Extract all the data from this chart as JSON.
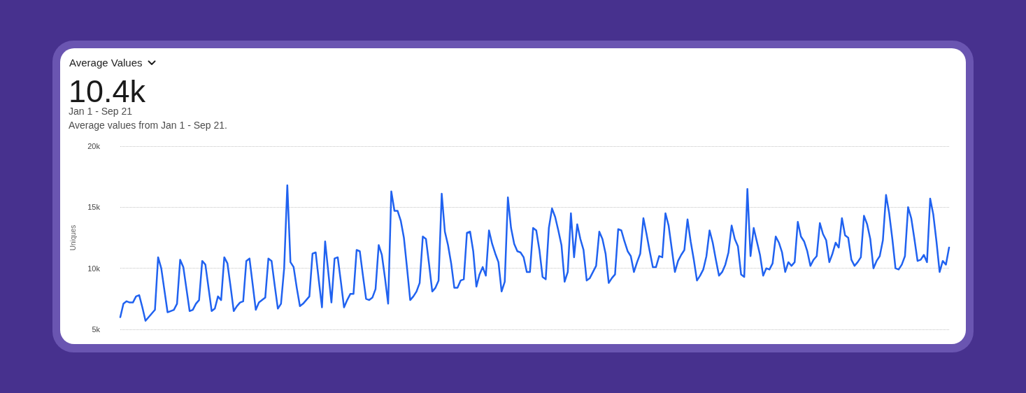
{
  "chart_data": {
    "type": "line",
    "title": "Average Values",
    "annotations": [
      "10.4k",
      "Jan 1 - Sep 21",
      "Average values from Jan 1 - Sep 21."
    ],
    "ylabel": "Uniques",
    "categories": [
      null,
      null,
      null,
      null,
      null,
      null,
      null,
      null,
      null,
      null,
      null,
      null,
      null,
      null,
      null,
      null,
      null,
      null,
      null,
      null,
      null,
      null,
      null,
      null,
      null,
      null,
      null,
      null,
      null,
      null,
      null,
      null,
      null,
      null,
      null,
      null,
      null,
      null,
      null,
      null,
      null,
      null,
      null,
      null,
      null,
      null,
      null,
      null,
      null,
      null,
      null,
      null,
      null,
      null,
      null,
      null,
      null,
      null,
      null,
      null,
      null,
      null,
      null,
      null,
      null,
      null,
      null,
      null,
      null,
      null,
      null,
      null,
      null,
      null,
      null,
      null,
      null,
      null,
      null,
      null,
      null,
      null,
      null,
      null,
      null,
      null,
      null,
      null,
      null,
      null,
      null,
      null,
      null,
      null,
      null,
      null,
      null,
      null,
      null,
      null,
      null,
      null,
      null,
      null,
      null,
      null,
      null,
      null,
      null,
      null,
      null,
      null,
      null,
      null,
      null,
      null,
      null,
      null,
      null,
      null,
      null,
      null,
      null,
      null,
      null,
      null,
      null,
      null,
      null,
      null,
      null,
      null,
      null,
      null,
      null,
      null,
      null,
      null,
      null,
      null,
      null,
      null,
      null,
      null,
      null,
      null,
      null,
      null,
      null,
      null,
      null,
      null,
      null,
      null,
      null,
      null,
      null,
      null,
      null,
      null,
      null,
      null,
      null,
      null,
      null,
      null,
      null,
      null,
      null,
      null,
      null,
      null,
      null,
      null,
      null,
      null,
      null,
      null,
      null,
      null,
      null,
      null,
      null,
      null,
      null,
      null,
      null,
      null,
      null,
      null,
      null,
      null,
      null,
      null,
      null,
      null,
      null,
      null,
      null,
      null,
      null,
      null,
      null,
      null,
      null,
      null,
      null,
      null,
      null,
      null,
      null,
      null,
      null,
      null,
      null,
      null,
      null,
      null,
      null,
      null,
      null,
      null,
      null,
      null,
      null,
      null,
      null,
      null,
      null,
      null,
      null,
      null,
      null,
      null,
      null,
      null,
      null,
      null,
      null,
      null,
      null,
      null,
      null,
      null,
      null,
      null,
      null,
      null,
      null,
      null,
      null,
      null,
      null,
      null,
      null,
      null,
      null,
      null,
      null,
      null,
      null,
      null,
      null,
      null
    ],
    "values": [
      6000,
      7100,
      7300,
      7200,
      7200,
      7700,
      7800,
      6800,
      5700,
      6000,
      6300,
      6600,
      10900,
      10000,
      8200,
      6400,
      6500,
      6600,
      7100,
      10700,
      10100,
      8300,
      6500,
      6600,
      7100,
      7400,
      10600,
      10300,
      8400,
      6500,
      6700,
      7700,
      7400,
      10900,
      10400,
      8500,
      6500,
      6900,
      7200,
      7300,
      10600,
      10800,
      8700,
      6600,
      7200,
      7400,
      7600,
      10800,
      10600,
      8600,
      6700,
      7100,
      10000,
      16800,
      10500,
      10100,
      8400,
      6900,
      7100,
      7400,
      7700,
      11200,
      11300,
      9000,
      6800,
      12200,
      9700,
      7200,
      10800,
      10900,
      8900,
      6800,
      7400,
      7900,
      7900,
      11500,
      11400,
      9400,
      7500,
      7400,
      7600,
      8300,
      11900,
      11100,
      9200,
      7100,
      16300,
      14700,
      14700,
      13900,
      12500,
      10000,
      7400,
      7700,
      8100,
      8800,
      12600,
      12400,
      10300,
      8100,
      8400,
      9000,
      16100,
      13000,
      11900,
      10400,
      8400,
      8400,
      9000,
      9100,
      12900,
      13000,
      11400,
      8500,
      9500,
      10100,
      9400,
      13100,
      12000,
      11200,
      10500,
      8100,
      8900,
      15800,
      13300,
      12000,
      11400,
      11300,
      10900,
      9700,
      9700,
      13300,
      13100,
      11500,
      9300,
      9100,
      13300,
      14900,
      14200,
      13100,
      11900,
      8900,
      9700,
      14500,
      10900,
      13600,
      12400,
      11500,
      9000,
      9200,
      9700,
      10200,
      13000,
      12400,
      11200,
      8800,
      9200,
      9500,
      13200,
      13100,
      12200,
      11400,
      11000,
      9700,
      10500,
      11200,
      14100,
      12800,
      11400,
      10100,
      10100,
      11000,
      10900,
      14500,
      13500,
      11600,
      9700,
      10600,
      11100,
      11500,
      14000,
      12200,
      10700,
      9000,
      9400,
      9900,
      11000,
      13100,
      12100,
      10700,
      9400,
      9700,
      10300,
      11300,
      13500,
      12400,
      11800,
      9500,
      9300,
      16500,
      11000,
      13300,
      12200,
      11100,
      9400,
      10000,
      9900,
      10400,
      12600,
      12100,
      11300,
      9700,
      10500,
      10200,
      10500,
      13800,
      12600,
      12200,
      11400,
      10200,
      10700,
      11000,
      13700,
      12800,
      12300,
      10500,
      11200,
      12100,
      11700,
      14100,
      12700,
      12500,
      10700,
      10200,
      10500,
      10900,
      14300,
      13600,
      12400,
      10000,
      10600,
      11000,
      12300,
      16000,
      14500,
      12400,
      10000,
      9900,
      10300,
      11000,
      15000,
      14100,
      12400,
      10600,
      10700,
      11100,
      10500,
      15700,
      14400,
      12200,
      9700,
      10600,
      10300,
      11700
    ],
    "color": "#2062f0",
    "ylim": [
      5000,
      20000
    ],
    "yticks": [
      {
        "value": 5000,
        "label": "5k"
      },
      {
        "value": 10000,
        "label": "10k"
      },
      {
        "value": 15000,
        "label": "15k"
      },
      {
        "value": 20000,
        "label": "20k"
      }
    ],
    "grid": "y",
    "tick_labels": "y",
    "line_style": "solid"
  }
}
